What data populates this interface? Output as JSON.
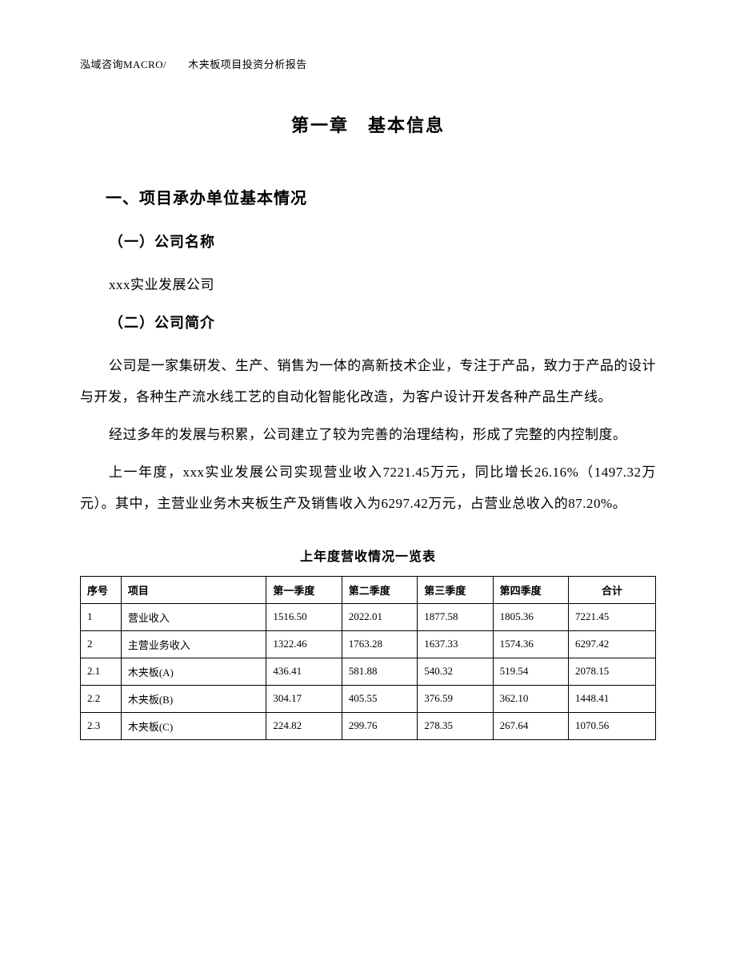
{
  "header": "泓域咨询MACRO/　　木夹板项目投资分析报告",
  "chapter_title": "第一章　基本信息",
  "section_1_title": "一、项目承办单位基本情况",
  "sub_1_title": "（一）公司名称",
  "company_name": "xxx实业发展公司",
  "sub_2_title": "（二）公司简介",
  "para_1": "公司是一家集研发、生产、销售为一体的高新技术企业，专注于产品，致力于产品的设计与开发，各种生产流水线工艺的自动化智能化改造，为客户设计开发各种产品生产线。",
  "para_2": "经过多年的发展与积累，公司建立了较为完善的治理结构，形成了完整的内控制度。",
  "para_3": "上一年度，xxx实业发展公司实现营业收入7221.45万元，同比增长26.16%（1497.32万元）。其中，主营业业务木夹板生产及销售收入为6297.42万元，占营业总收入的87.20%。",
  "table_title": "上年度营收情况一览表",
  "table": {
    "columns": [
      "序号",
      "项目",
      "第一季度",
      "第二季度",
      "第三季度",
      "第四季度",
      "合计"
    ],
    "rows": [
      [
        "1",
        "营业收入",
        "1516.50",
        "2022.01",
        "1877.58",
        "1805.36",
        "7221.45"
      ],
      [
        "2",
        "主营业务收入",
        "1322.46",
        "1763.28",
        "1637.33",
        "1574.36",
        "6297.42"
      ],
      [
        "2.1",
        "木夹板(A)",
        "436.41",
        "581.88",
        "540.32",
        "519.54",
        "2078.15"
      ],
      [
        "2.2",
        "木夹板(B)",
        "304.17",
        "405.55",
        "376.59",
        "362.10",
        "1448.41"
      ],
      [
        "2.3",
        "木夹板(C)",
        "224.82",
        "299.76",
        "278.35",
        "267.64",
        "1070.56"
      ]
    ]
  }
}
